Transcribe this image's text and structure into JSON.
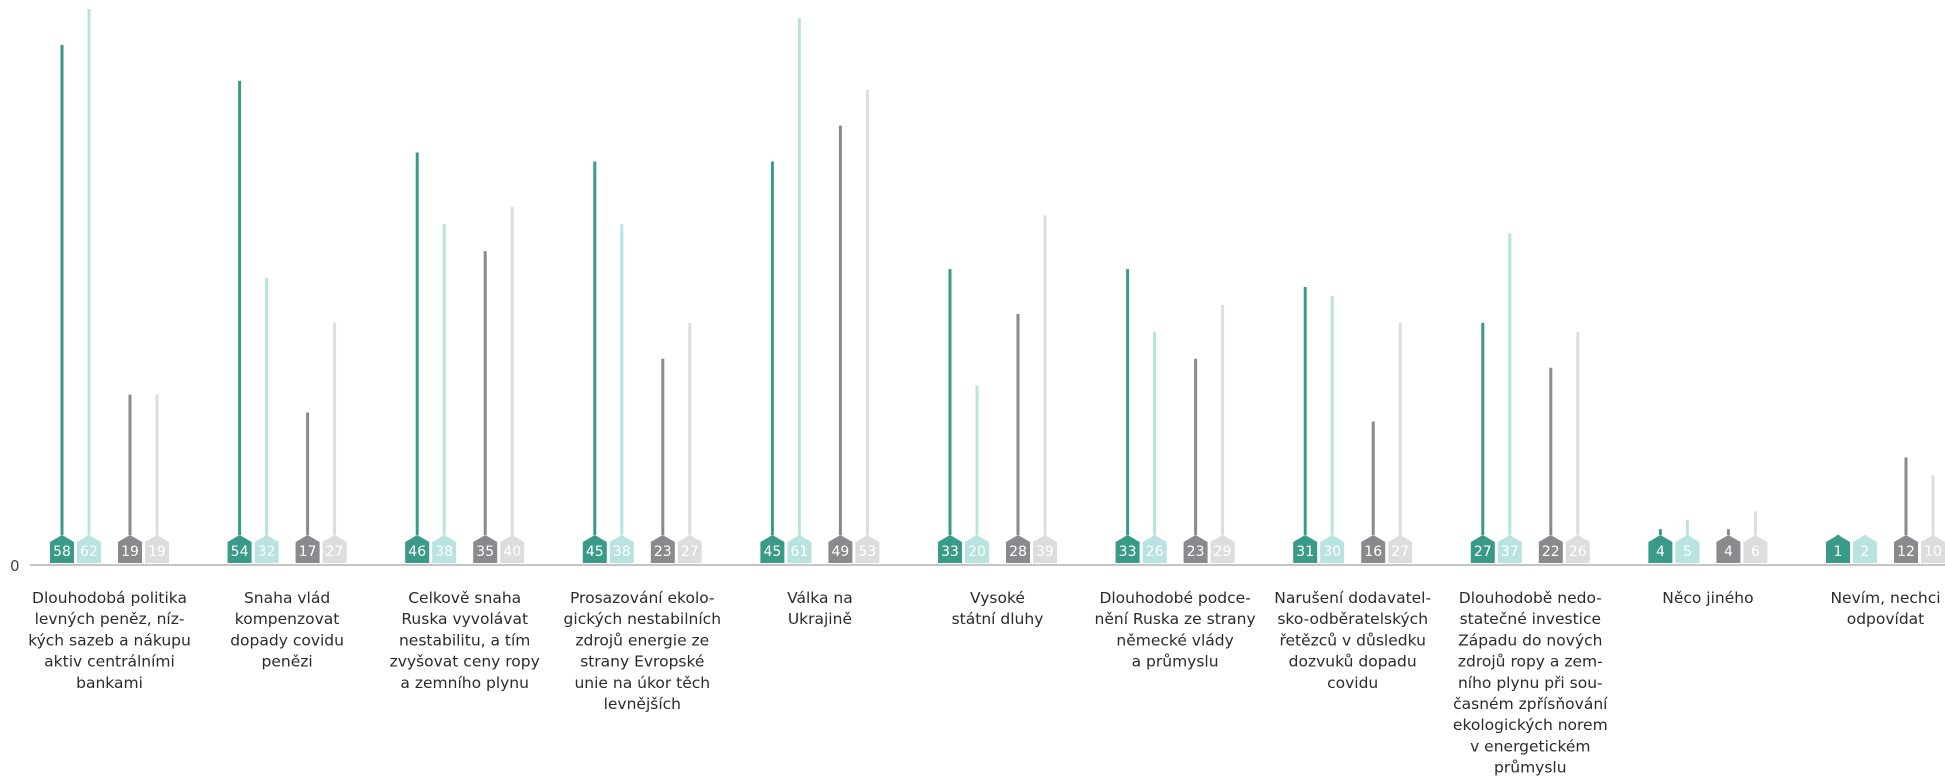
{
  "chart_data": {
    "type": "bar",
    "categories": [
      [
        "Dlouhodobá politika",
        "levných peněz, níz-",
        "kých sazeb a nákupu",
        "aktiv centrálními",
        "bankami"
      ],
      [
        "Snaha vlád",
        "kompenzovat",
        "dopady covidu",
        "penězi"
      ],
      [
        "Celkově snaha",
        "Ruska vyvolávat",
        "nestabilitu, a tím",
        "zvyšovat ceny ropy",
        "a zemního plynu"
      ],
      [
        "Prosazování ekolo-",
        "gických nestabilních",
        "zdrojů energie ze",
        "strany Evropské",
        "unie na úkor těch",
        "levnějších"
      ],
      [
        "Válka na",
        "Ukrajině"
      ],
      [
        "Vysoké",
        "státní dluhy"
      ],
      [
        "Dlouhodobé podce-",
        "nění Ruska ze strany",
        "německé vlády",
        "a průmyslu"
      ],
      [
        "Narušení dodavatel-",
        "sko-odběratelských",
        "řetězců v důsledku",
        "dozvuků dopadu",
        "covidu"
      ],
      [
        "Dlouhodobě nedo-",
        "statečné investice",
        "Západu do nových",
        "zdrojů ropy a zem-",
        "ního plynu při sou-",
        "časném zpřísňování",
        "ekologických norem",
        "v energetickém",
        "průmyslu"
      ],
      [
        "Něco jiného"
      ],
      [
        "Nevím, nechci",
        "odpovídat"
      ]
    ],
    "series": [
      {
        "color": "#3a9a88",
        "values": [
          58,
          54,
          46,
          45,
          45,
          33,
          33,
          31,
          27,
          4,
          1
        ]
      },
      {
        "color": "#b8e3de",
        "values": [
          62,
          32,
          38,
          38,
          61,
          20,
          26,
          30,
          37,
          5,
          2
        ]
      },
      {
        "color": "#8a8a8e",
        "values": [
          19,
          17,
          35,
          23,
          49,
          28,
          23,
          16,
          22,
          4,
          12
        ]
      },
      {
        "color": "#dddddd",
        "values": [
          19,
          27,
          40,
          27,
          53,
          39,
          29,
          27,
          26,
          6,
          10
        ]
      }
    ],
    "ylim": [
      0,
      62
    ],
    "y_zero_label": "0",
    "axis_color": "#b0b0b0"
  }
}
